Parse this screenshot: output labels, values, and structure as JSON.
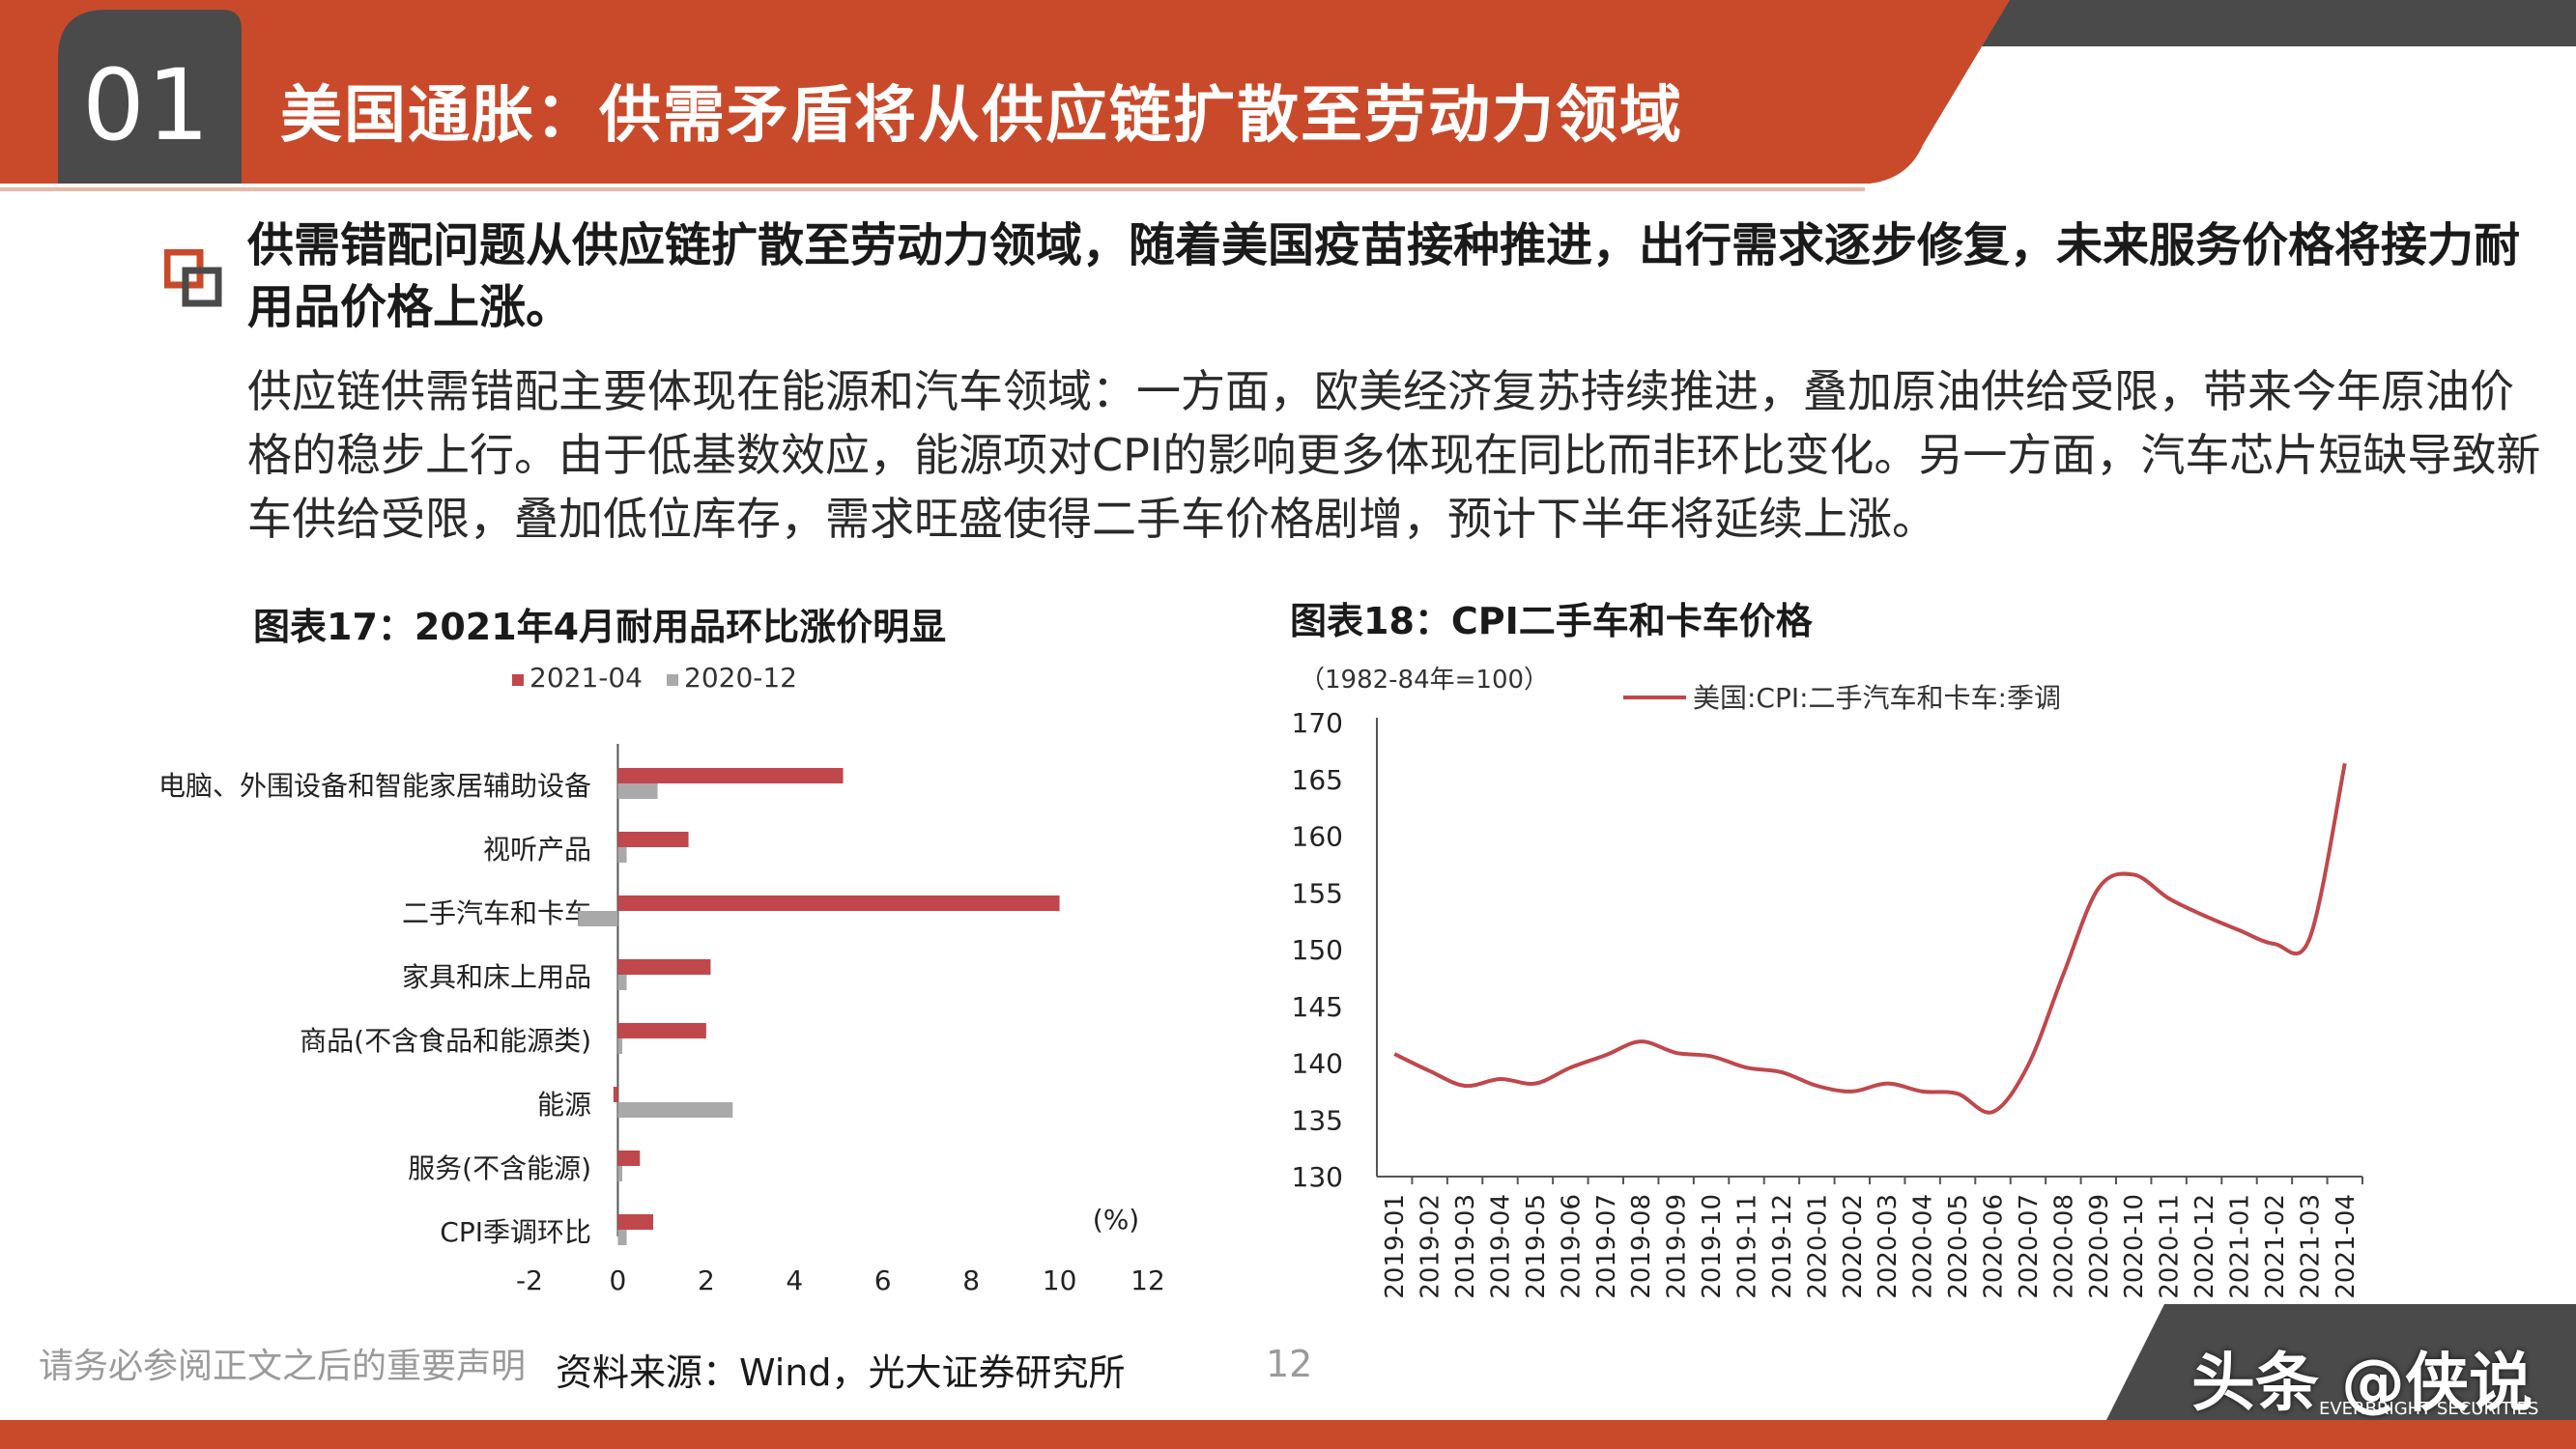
{
  "header": {
    "section_number": "01",
    "title": "美国通胀：供需矛盾将从供应链扩散至劳动力领域"
  },
  "content": {
    "headline": "供需错配问题从供应链扩散至劳动力领域，随着美国疫苗接种推进，出行需求逐步修复，未来服务价格将接力耐用品价格上涨。",
    "body": "供应链供需错配主要体现在能源和汽车领域：一方面，欧美经济复苏持续推进，叠加原油供给受限，带来今年原油价格的稳步上行。由于低基数效应，能源项对CPI的影响更多体现在同比而非环比变化。另一方面，汽车芯片短缺导致新车供给受限，叠加低位库存，需求旺盛使得二手车价格剧增，预计下半年将延续上涨。"
  },
  "colors": {
    "brand_red": "#c94a2a",
    "dark_gray": "#4a4a4a",
    "series_red": "#c0474b",
    "series_gray": "#a9a9a9"
  },
  "chart_data": [
    {
      "type": "bar",
      "orientation": "horizontal",
      "title": "图表17：2021年4月耐用品环比涨价明显",
      "categories": [
        "电脑、外围设备和智能家居辅助设备",
        "视听产品",
        "二手汽车和卡车",
        "家具和床上用品",
        "商品(不含食品和能源类)",
        "能源",
        "服务(不含能源)",
        "CPI季调环比"
      ],
      "series": [
        {
          "name": "2021-04",
          "values": [
            5.1,
            1.6,
            10.0,
            2.1,
            2.0,
            -0.1,
            0.5,
            0.8
          ]
        },
        {
          "name": "2020-12",
          "values": [
            0.9,
            0.2,
            -0.9,
            0.2,
            0.1,
            2.6,
            0.1,
            0.2
          ]
        }
      ],
      "xlim": [
        -2,
        12
      ],
      "xticks": [
        "-2",
        "0",
        "2",
        "4",
        "6",
        "8",
        "10",
        "12"
      ],
      "unit_label": "(%)",
      "legend_position": "top"
    },
    {
      "type": "line",
      "title": "图表18：CPI二手车和卡车价格",
      "ylabel": "（1982-84年=100）",
      "ylim": [
        130,
        170
      ],
      "yticks": [
        "130",
        "135",
        "140",
        "145",
        "150",
        "155",
        "160",
        "165",
        "170"
      ],
      "x": [
        "2019-01",
        "2019-02",
        "2019-03",
        "2019-04",
        "2019-05",
        "2019-06",
        "2019-07",
        "2019-08",
        "2019-09",
        "2019-10",
        "2019-11",
        "2019-12",
        "2020-01",
        "2020-02",
        "2020-03",
        "2020-04",
        "2020-05",
        "2020-06",
        "2020-07",
        "2020-08",
        "2020-09",
        "2020-10",
        "2020-11",
        "2020-12",
        "2021-01",
        "2021-02",
        "2021-03",
        "2021-04"
      ],
      "series": [
        {
          "name": "美国:CPI:二手汽车和卡车:季调",
          "values": [
            140.8,
            139.3,
            138.0,
            138.6,
            138.2,
            139.6,
            140.7,
            141.9,
            140.9,
            140.6,
            139.6,
            139.2,
            138.0,
            137.5,
            138.2,
            137.5,
            137.3,
            135.7,
            139.8,
            147.8,
            155.4,
            156.6,
            154.5,
            153.0,
            151.7,
            150.5,
            151.0,
            166.4
          ]
        }
      ],
      "legend_position": "top-right"
    }
  ],
  "footer": {
    "disclaimer": "请务必参阅正文之后的重要声明",
    "source": "资料来源：Wind，光大证券研究所",
    "page_number": "12",
    "watermark": "头条 @侠说",
    "brand_small": "EVERBRIGHT SECURITIES"
  }
}
